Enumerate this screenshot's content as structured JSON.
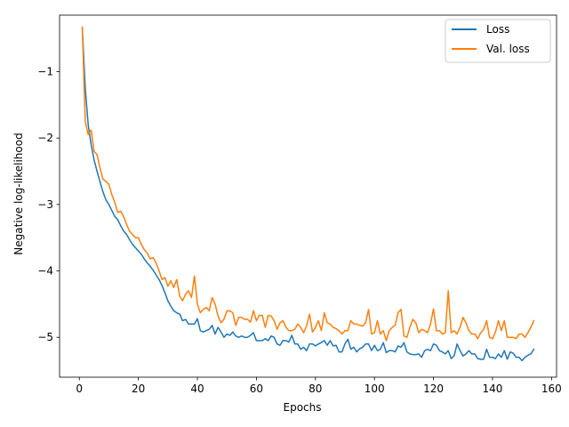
{
  "chart_data": {
    "type": "line",
    "title": "",
    "xlabel": "Epochs",
    "ylabel": "Negative log-likelihood",
    "xlim": [
      -6.7,
      161.7
    ],
    "ylim": [
      -5.6,
      -0.15
    ],
    "xticks": [
      0,
      20,
      40,
      60,
      80,
      100,
      120,
      140,
      160
    ],
    "yticks": [
      -5,
      -4,
      -3,
      -2,
      -1
    ],
    "ytick_labels": [
      "−5",
      "−4",
      "−3",
      "−2",
      "−1"
    ],
    "grid": false,
    "legend_position": "top-right",
    "series": [
      {
        "name": "Loss",
        "color": "#1f77b4",
        "points": [
          [
            1,
            -0.35
          ],
          [
            2,
            -1.25
          ],
          [
            3,
            -1.8
          ],
          [
            4,
            -2.1
          ],
          [
            5,
            -2.33
          ],
          [
            6,
            -2.5
          ],
          [
            7,
            -2.66
          ],
          [
            8,
            -2.81
          ],
          [
            9,
            -2.93
          ],
          [
            10,
            -3.0
          ],
          [
            11,
            -3.09
          ],
          [
            12,
            -3.18
          ],
          [
            13,
            -3.23
          ],
          [
            14,
            -3.32
          ],
          [
            15,
            -3.4
          ],
          [
            16,
            -3.45
          ],
          [
            17,
            -3.53
          ],
          [
            18,
            -3.6
          ],
          [
            19,
            -3.65
          ],
          [
            20,
            -3.7
          ],
          [
            21,
            -3.75
          ],
          [
            22,
            -3.82
          ],
          [
            23,
            -3.88
          ],
          [
            24,
            -3.93
          ],
          [
            25,
            -3.99
          ],
          [
            26,
            -4.06
          ],
          [
            27,
            -4.13
          ],
          [
            28,
            -4.22
          ],
          [
            29,
            -4.33
          ],
          [
            30,
            -4.45
          ],
          [
            31,
            -4.53
          ],
          [
            32,
            -4.6
          ],
          [
            33,
            -4.63
          ],
          [
            34,
            -4.65
          ],
          [
            35,
            -4.75
          ],
          [
            36,
            -4.73
          ],
          [
            37,
            -4.8
          ],
          [
            38,
            -4.8
          ],
          [
            39,
            -4.8
          ],
          [
            40,
            -4.72
          ],
          [
            41,
            -4.9
          ],
          [
            42,
            -4.92
          ],
          [
            43,
            -4.9
          ],
          [
            44,
            -4.88
          ],
          [
            45,
            -4.82
          ],
          [
            46,
            -4.95
          ],
          [
            47,
            -4.85
          ],
          [
            48,
            -4.92
          ],
          [
            49,
            -5.0
          ],
          [
            50,
            -4.95
          ],
          [
            51,
            -4.97
          ],
          [
            52,
            -4.92
          ],
          [
            53,
            -4.98
          ],
          [
            54,
            -5.0
          ],
          [
            55,
            -4.98
          ],
          [
            56,
            -5.0
          ],
          [
            57,
            -5.0
          ],
          [
            58,
            -4.97
          ],
          [
            59,
            -4.93
          ],
          [
            60,
            -5.05
          ],
          [
            61,
            -5.05
          ],
          [
            62,
            -5.05
          ],
          [
            63,
            -5.02
          ],
          [
            64,
            -5.05
          ],
          [
            65,
            -4.98
          ],
          [
            66,
            -5.0
          ],
          [
            67,
            -5.1
          ],
          [
            68,
            -5.12
          ],
          [
            69,
            -5.05
          ],
          [
            70,
            -5.05
          ],
          [
            71,
            -5.07
          ],
          [
            72,
            -4.97
          ],
          [
            73,
            -5.1
          ],
          [
            74,
            -5.1
          ],
          [
            75,
            -5.18
          ],
          [
            76,
            -5.15
          ],
          [
            77,
            -5.2
          ],
          [
            78,
            -5.1
          ],
          [
            79,
            -5.1
          ],
          [
            80,
            -5.13
          ],
          [
            81,
            -5.1
          ],
          [
            82,
            -5.08
          ],
          [
            83,
            -5.05
          ],
          [
            84,
            -5.12
          ],
          [
            85,
            -5.05
          ],
          [
            86,
            -5.13
          ],
          [
            87,
            -5.12
          ],
          [
            88,
            -5.22
          ],
          [
            89,
            -5.22
          ],
          [
            90,
            -5.1
          ],
          [
            91,
            -5.03
          ],
          [
            92,
            -5.18
          ],
          [
            93,
            -5.15
          ],
          [
            94,
            -5.22
          ],
          [
            95,
            -5.17
          ],
          [
            96,
            -5.15
          ],
          [
            97,
            -5.1
          ],
          [
            98,
            -5.1
          ],
          [
            99,
            -5.2
          ],
          [
            100,
            -5.12
          ],
          [
            101,
            -5.2
          ],
          [
            102,
            -5.18
          ],
          [
            103,
            -5.08
          ],
          [
            104,
            -5.23
          ],
          [
            105,
            -5.2
          ],
          [
            106,
            -5.2
          ],
          [
            107,
            -5.22
          ],
          [
            108,
            -5.13
          ],
          [
            109,
            -5.15
          ],
          [
            110,
            -5.08
          ],
          [
            111,
            -5.22
          ],
          [
            112,
            -5.25
          ],
          [
            113,
            -5.26
          ],
          [
            114,
            -5.26
          ],
          [
            115,
            -5.25
          ],
          [
            116,
            -5.3
          ],
          [
            117,
            -5.2
          ],
          [
            118,
            -5.18
          ],
          [
            119,
            -5.2
          ],
          [
            120,
            -5.1
          ],
          [
            121,
            -5.12
          ],
          [
            122,
            -5.2
          ],
          [
            123,
            -5.22
          ],
          [
            124,
            -5.25
          ],
          [
            125,
            -5.2
          ],
          [
            126,
            -5.32
          ],
          [
            127,
            -5.28
          ],
          [
            128,
            -5.1
          ],
          [
            129,
            -5.2
          ],
          [
            130,
            -5.28
          ],
          [
            131,
            -5.25
          ],
          [
            132,
            -5.2
          ],
          [
            133,
            -5.25
          ],
          [
            134,
            -5.25
          ],
          [
            135,
            -5.32
          ],
          [
            136,
            -5.33
          ],
          [
            137,
            -5.33
          ],
          [
            138,
            -5.18
          ],
          [
            139,
            -5.3
          ],
          [
            140,
            -5.3
          ],
          [
            141,
            -5.32
          ],
          [
            142,
            -5.25
          ],
          [
            143,
            -5.3
          ],
          [
            144,
            -5.2
          ],
          [
            145,
            -5.33
          ],
          [
            146,
            -5.22
          ],
          [
            147,
            -5.24
          ],
          [
            148,
            -5.3
          ],
          [
            149,
            -5.3
          ],
          [
            150,
            -5.35
          ],
          [
            151,
            -5.3
          ],
          [
            152,
            -5.27
          ],
          [
            153,
            -5.25
          ],
          [
            154,
            -5.18
          ]
        ]
      },
      {
        "name": "Val. loss",
        "color": "#ff7f0e",
        "points": [
          [
            1,
            -0.33
          ],
          [
            2,
            -1.75
          ],
          [
            3,
            -1.95
          ],
          [
            4,
            -1.88
          ],
          [
            5,
            -2.2
          ],
          [
            6,
            -2.25
          ],
          [
            7,
            -2.45
          ],
          [
            8,
            -2.62
          ],
          [
            9,
            -2.65
          ],
          [
            10,
            -2.7
          ],
          [
            11,
            -2.85
          ],
          [
            12,
            -2.97
          ],
          [
            13,
            -3.12
          ],
          [
            14,
            -3.1
          ],
          [
            15,
            -3.18
          ],
          [
            16,
            -3.3
          ],
          [
            17,
            -3.4
          ],
          [
            18,
            -3.45
          ],
          [
            19,
            -3.5
          ],
          [
            20,
            -3.5
          ],
          [
            21,
            -3.6
          ],
          [
            22,
            -3.68
          ],
          [
            23,
            -3.73
          ],
          [
            24,
            -3.82
          ],
          [
            25,
            -3.8
          ],
          [
            26,
            -3.88
          ],
          [
            27,
            -4.0
          ],
          [
            28,
            -4.13
          ],
          [
            29,
            -4.1
          ],
          [
            30,
            -4.23
          ],
          [
            31,
            -4.15
          ],
          [
            32,
            -4.25
          ],
          [
            33,
            -4.13
          ],
          [
            34,
            -4.38
          ],
          [
            35,
            -4.45
          ],
          [
            36,
            -4.35
          ],
          [
            37,
            -4.3
          ],
          [
            38,
            -4.4
          ],
          [
            39,
            -4.08
          ],
          [
            40,
            -4.5
          ],
          [
            41,
            -4.63
          ],
          [
            42,
            -4.58
          ],
          [
            43,
            -4.55
          ],
          [
            44,
            -4.6
          ],
          [
            45,
            -4.4
          ],
          [
            46,
            -4.5
          ],
          [
            47,
            -4.68
          ],
          [
            48,
            -4.78
          ],
          [
            49,
            -4.73
          ],
          [
            50,
            -4.6
          ],
          [
            51,
            -4.6
          ],
          [
            52,
            -4.63
          ],
          [
            53,
            -4.82
          ],
          [
            54,
            -4.7
          ],
          [
            55,
            -4.7
          ],
          [
            56,
            -4.73
          ],
          [
            57,
            -4.73
          ],
          [
            58,
            -4.77
          ],
          [
            59,
            -4.6
          ],
          [
            60,
            -4.75
          ],
          [
            61,
            -4.67
          ],
          [
            62,
            -4.67
          ],
          [
            63,
            -4.85
          ],
          [
            64,
            -4.67
          ],
          [
            65,
            -4.68
          ],
          [
            66,
            -4.75
          ],
          [
            67,
            -4.88
          ],
          [
            68,
            -4.78
          ],
          [
            69,
            -4.75
          ],
          [
            70,
            -4.85
          ],
          [
            71,
            -4.9
          ],
          [
            72,
            -4.9
          ],
          [
            73,
            -4.88
          ],
          [
            74,
            -4.8
          ],
          [
            75,
            -4.85
          ],
          [
            76,
            -4.93
          ],
          [
            77,
            -4.83
          ],
          [
            78,
            -4.65
          ],
          [
            79,
            -4.92
          ],
          [
            80,
            -4.85
          ],
          [
            81,
            -4.75
          ],
          [
            82,
            -4.9
          ],
          [
            83,
            -4.63
          ],
          [
            84,
            -4.78
          ],
          [
            85,
            -4.8
          ],
          [
            86,
            -4.85
          ],
          [
            87,
            -4.87
          ],
          [
            88,
            -4.9
          ],
          [
            89,
            -4.95
          ],
          [
            90,
            -4.9
          ],
          [
            91,
            -4.9
          ],
          [
            92,
            -4.75
          ],
          [
            93,
            -4.8
          ],
          [
            94,
            -4.8
          ],
          [
            95,
            -4.82
          ],
          [
            96,
            -4.83
          ],
          [
            97,
            -4.78
          ],
          [
            98,
            -4.58
          ],
          [
            99,
            -4.95
          ],
          [
            100,
            -4.93
          ],
          [
            101,
            -4.75
          ],
          [
            102,
            -4.95
          ],
          [
            103,
            -4.9
          ],
          [
            104,
            -5.05
          ],
          [
            105,
            -4.9
          ],
          [
            106,
            -4.85
          ],
          [
            107,
            -4.82
          ],
          [
            108,
            -4.63
          ],
          [
            109,
            -4.58
          ],
          [
            110,
            -4.98
          ],
          [
            111,
            -5.0
          ],
          [
            112,
            -4.85
          ],
          [
            113,
            -4.73
          ],
          [
            114,
            -4.78
          ],
          [
            115,
            -4.93
          ],
          [
            116,
            -4.88
          ],
          [
            117,
            -4.9
          ],
          [
            118,
            -4.93
          ],
          [
            119,
            -4.8
          ],
          [
            120,
            -4.57
          ],
          [
            121,
            -4.9
          ],
          [
            122,
            -4.9
          ],
          [
            123,
            -4.95
          ],
          [
            124,
            -4.93
          ],
          [
            125,
            -4.3
          ],
          [
            126,
            -4.93
          ],
          [
            127,
            -4.9
          ],
          [
            128,
            -4.95
          ],
          [
            129,
            -4.85
          ],
          [
            130,
            -4.7
          ],
          [
            131,
            -4.78
          ],
          [
            132,
            -4.9
          ],
          [
            133,
            -4.95
          ],
          [
            134,
            -4.95
          ],
          [
            135,
            -5.02
          ],
          [
            136,
            -4.93
          ],
          [
            137,
            -4.88
          ],
          [
            138,
            -4.75
          ],
          [
            139,
            -5.0
          ],
          [
            140,
            -5.02
          ],
          [
            141,
            -4.92
          ],
          [
            142,
            -4.75
          ],
          [
            143,
            -4.9
          ],
          [
            144,
            -4.75
          ],
          [
            145,
            -5.0
          ],
          [
            146,
            -5.0
          ],
          [
            147,
            -5.0
          ],
          [
            148,
            -5.02
          ],
          [
            149,
            -4.95
          ],
          [
            150,
            -4.95
          ],
          [
            151,
            -5.0
          ],
          [
            152,
            -4.93
          ],
          [
            153,
            -4.85
          ],
          [
            154,
            -4.75
          ]
        ]
      }
    ]
  }
}
